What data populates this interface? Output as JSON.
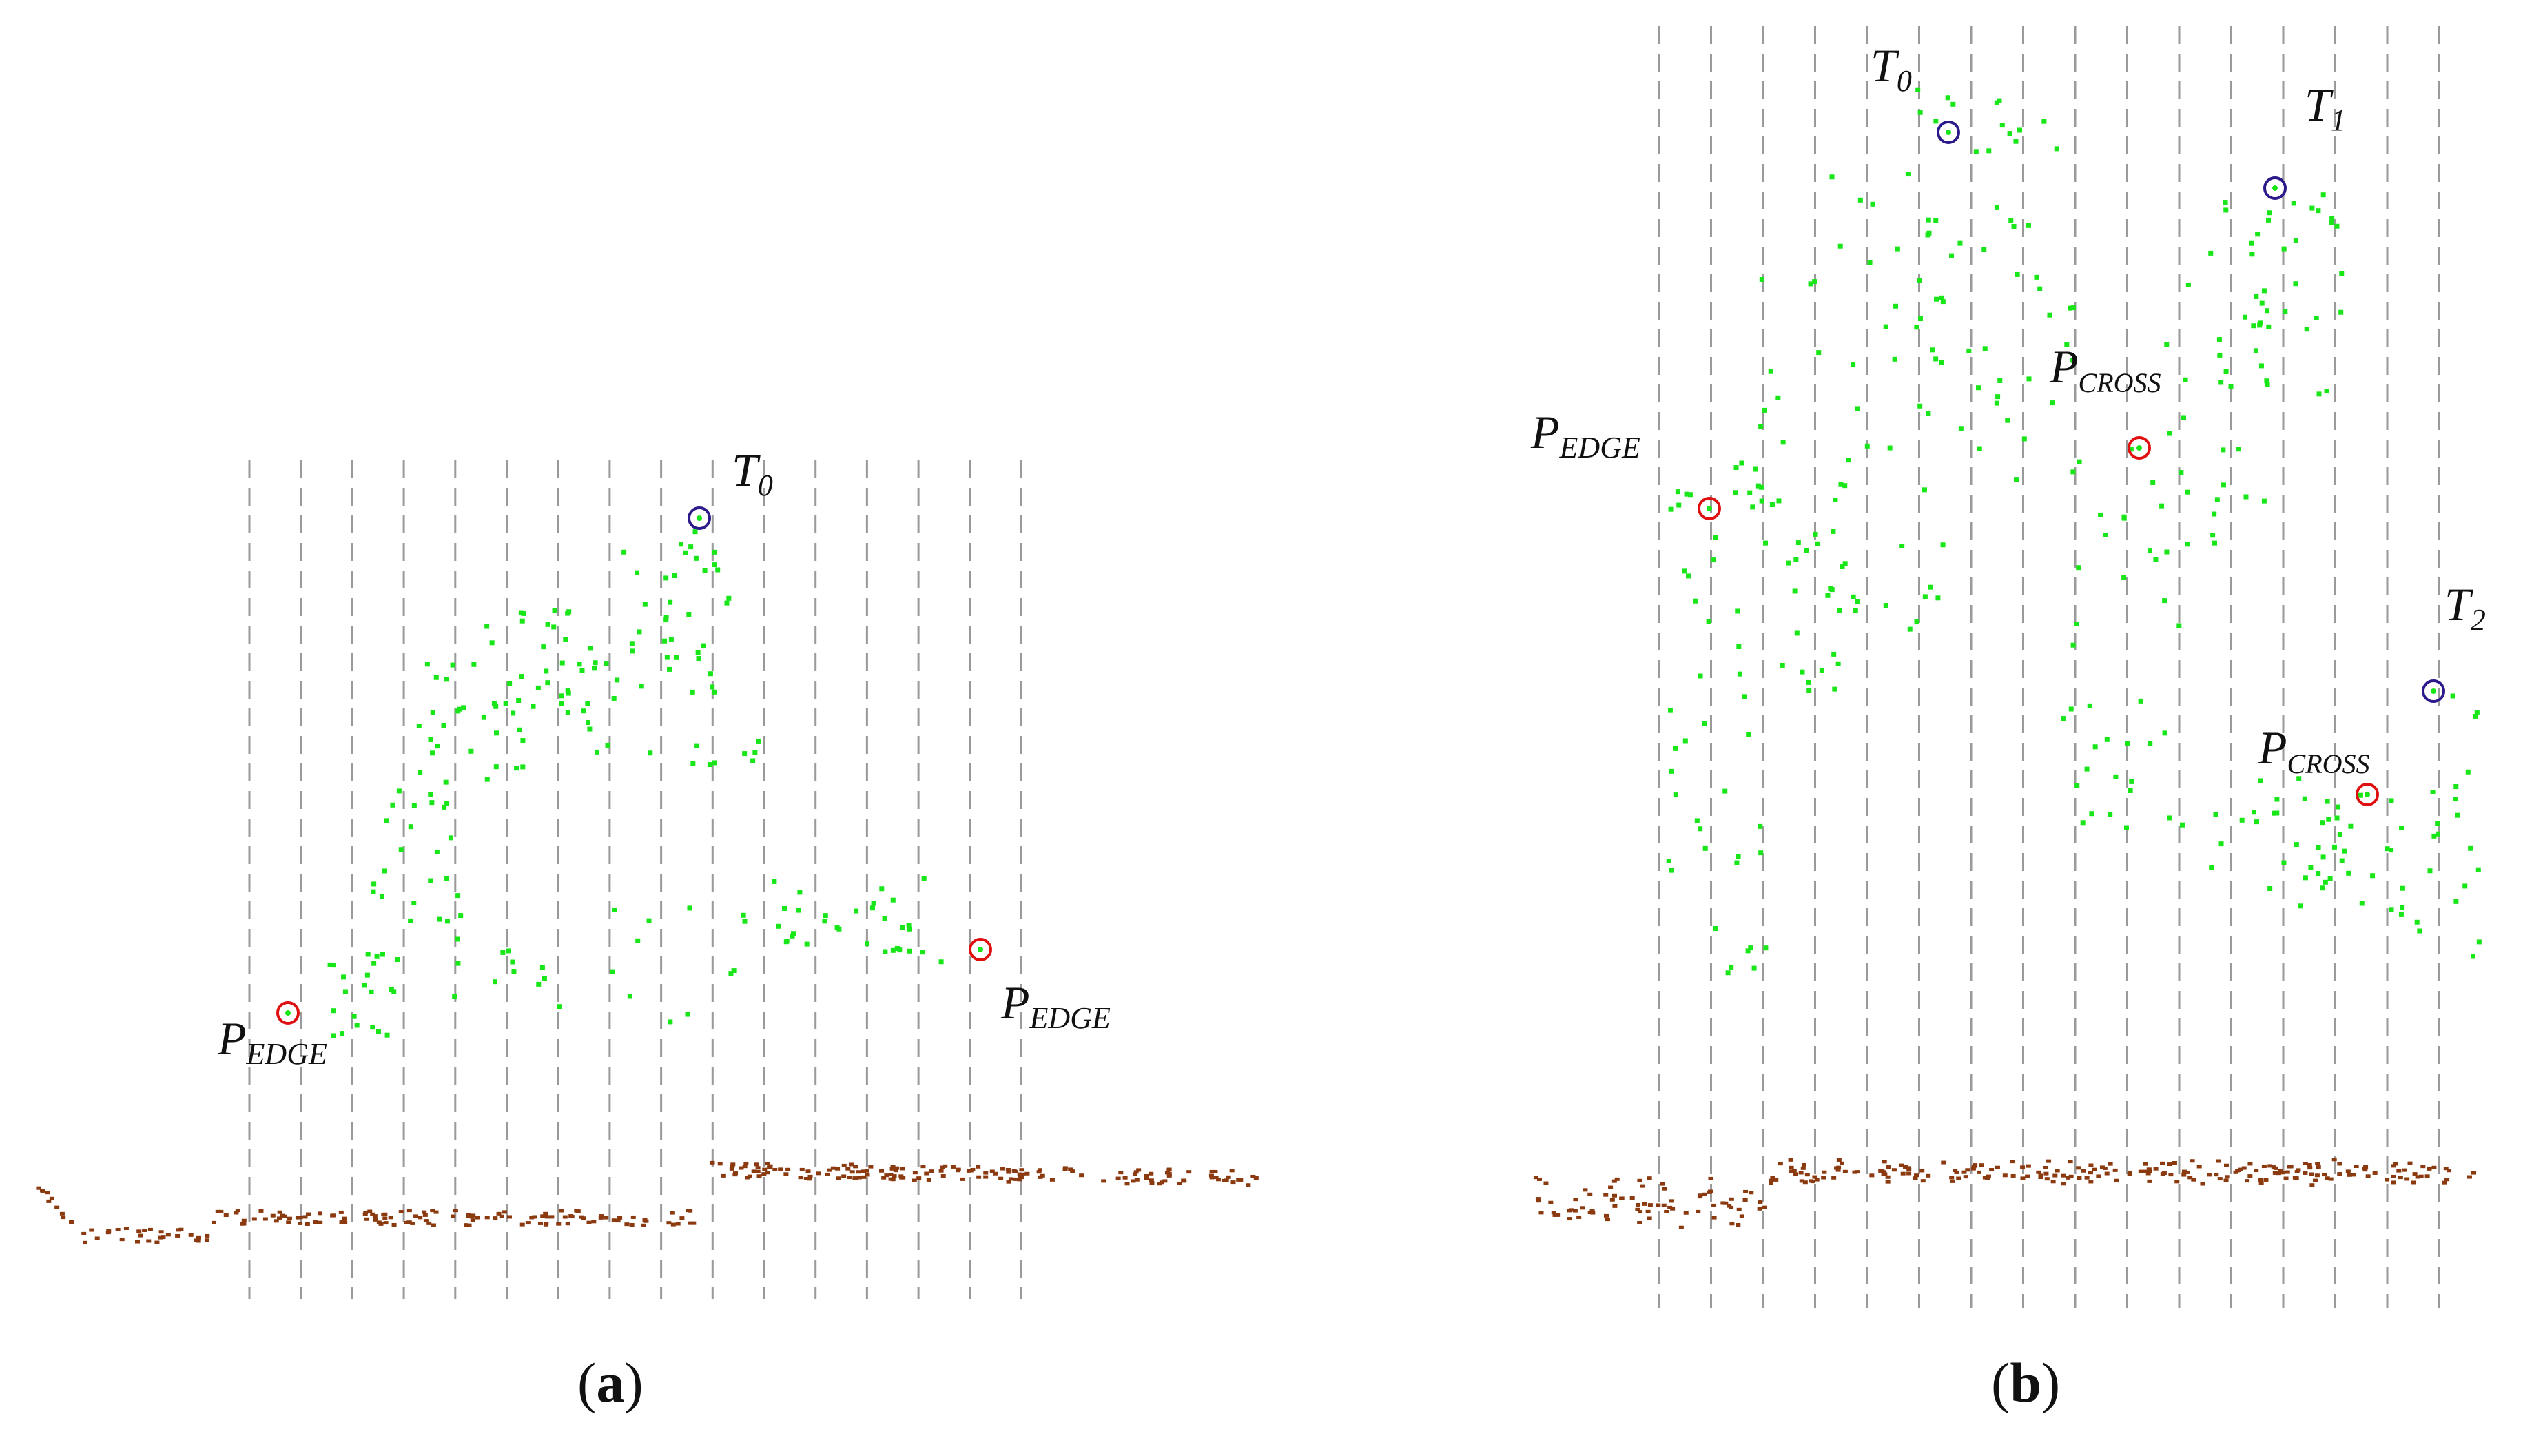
{
  "figure": {
    "panel_a": {
      "caption_open": "(",
      "caption_letter": "a",
      "caption_close": ")",
      "labels": {
        "t0": {
          "main": "T",
          "sub": "0"
        },
        "p_edge_left": {
          "main": "P",
          "sub": "EDGE"
        },
        "p_edge_right": {
          "main": "P",
          "sub": "EDGE"
        }
      },
      "vertical_line_count": 16
    },
    "panel_b": {
      "caption_open": "(",
      "caption_letter": "b",
      "caption_close": ")",
      "labels": {
        "t0": {
          "main": "T",
          "sub": "0"
        },
        "t1": {
          "main": "T",
          "sub": "1"
        },
        "t2": {
          "main": "T",
          "sub": "2"
        },
        "p_edge": {
          "main": "P",
          "sub": "EDGE"
        },
        "p_cross_1": {
          "main": "P",
          "sub": "CROSS"
        },
        "p_cross_2": {
          "main": "P",
          "sub": "CROSS"
        }
      },
      "vertical_line_count": 16
    }
  },
  "colors": {
    "vegetation_points": "#19e619",
    "ground_points": "#8b3a10",
    "tree_top_marker": "#2a1a8a",
    "edge_cross_marker": "#e01010",
    "grid_line": "#9a9a9a",
    "label_text": "#111111"
  }
}
